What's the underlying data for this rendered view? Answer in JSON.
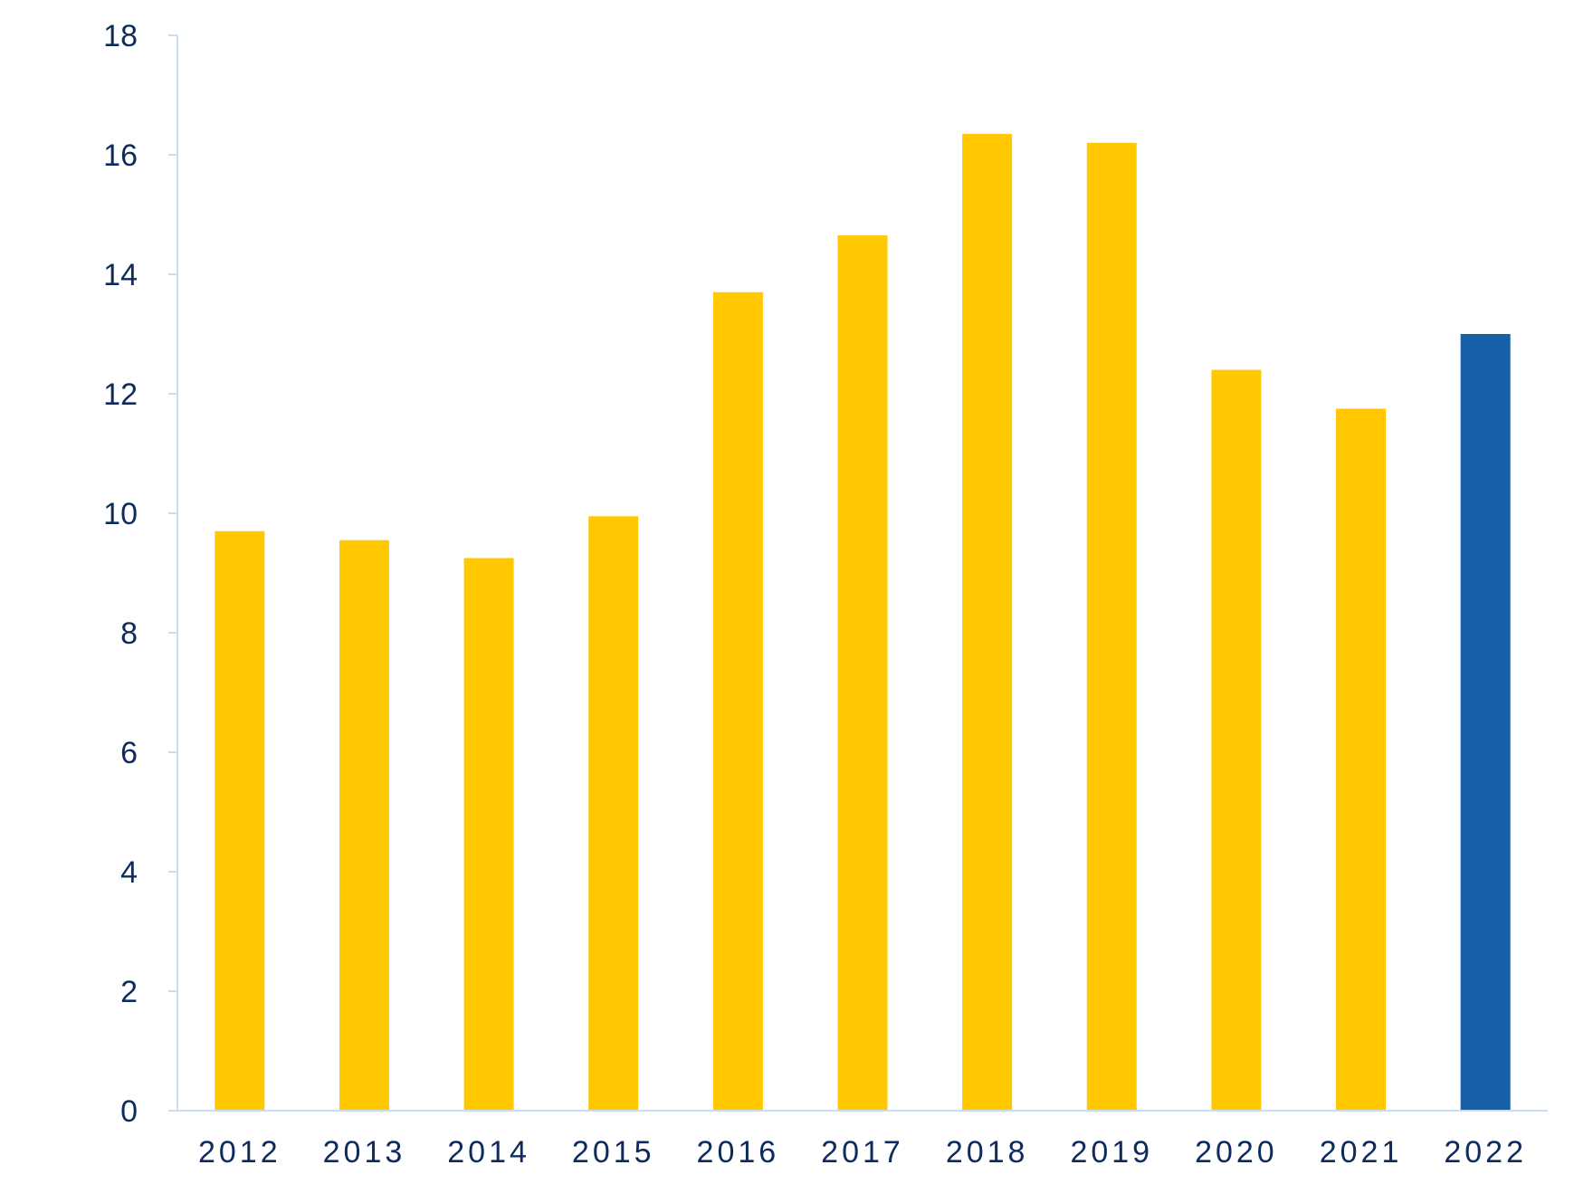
{
  "chart_data": {
    "type": "bar",
    "title": "",
    "xlabel": "",
    "ylabel": "",
    "categories": [
      "2012",
      "2013",
      "2014",
      "2015",
      "2016",
      "2017",
      "2018",
      "2019",
      "2020",
      "2021",
      "2022"
    ],
    "values": [
      9.7,
      9.55,
      9.25,
      9.95,
      13.7,
      14.65,
      16.35,
      16.2,
      12.4,
      11.75,
      13.0
    ],
    "highlight_index": 10,
    "ylim": [
      0,
      18
    ],
    "yticks": [
      0,
      2,
      4,
      6,
      8,
      10,
      12,
      14,
      16,
      18
    ],
    "grid": false,
    "legend": "none",
    "colors": {
      "bar": "#FFC800",
      "highlight_bar": "#1560A8",
      "axis_line": "#C9DDF7",
      "tick_label": "#0D2B5E"
    }
  }
}
